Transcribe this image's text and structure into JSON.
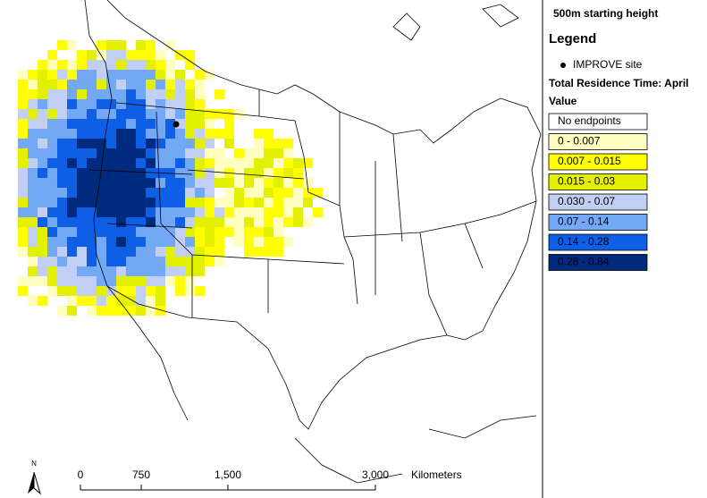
{
  "header": {
    "title": "500m starting height"
  },
  "legend": {
    "title": "Legend",
    "site": "IMPROVE site",
    "subtitle": "Total Residence Time: April",
    "field": "Value",
    "classes": [
      {
        "label": "No endpoints",
        "color": "#ffffff"
      },
      {
        "label": "0 - 0.007",
        "color": "#ffffc0"
      },
      {
        "label": "0.007 - 0.015",
        "color": "#ffff00"
      },
      {
        "label": "0.015 - 0.03",
        "color": "#e3f000"
      },
      {
        "label": "0.030 - 0.07",
        "color": "#c2cff5"
      },
      {
        "label": "0.07 - 0.14",
        "color": "#73a8f5"
      },
      {
        "label": "0.14 - 0.28",
        "color": "#0f5fe6"
      },
      {
        "label": "0.28 - 0.84",
        "color": "#002a7d"
      }
    ]
  },
  "scale": {
    "labels": [
      "0",
      "750",
      "1,500",
      "3,000"
    ],
    "unit": "Kilometers"
  },
  "north": "N"
}
